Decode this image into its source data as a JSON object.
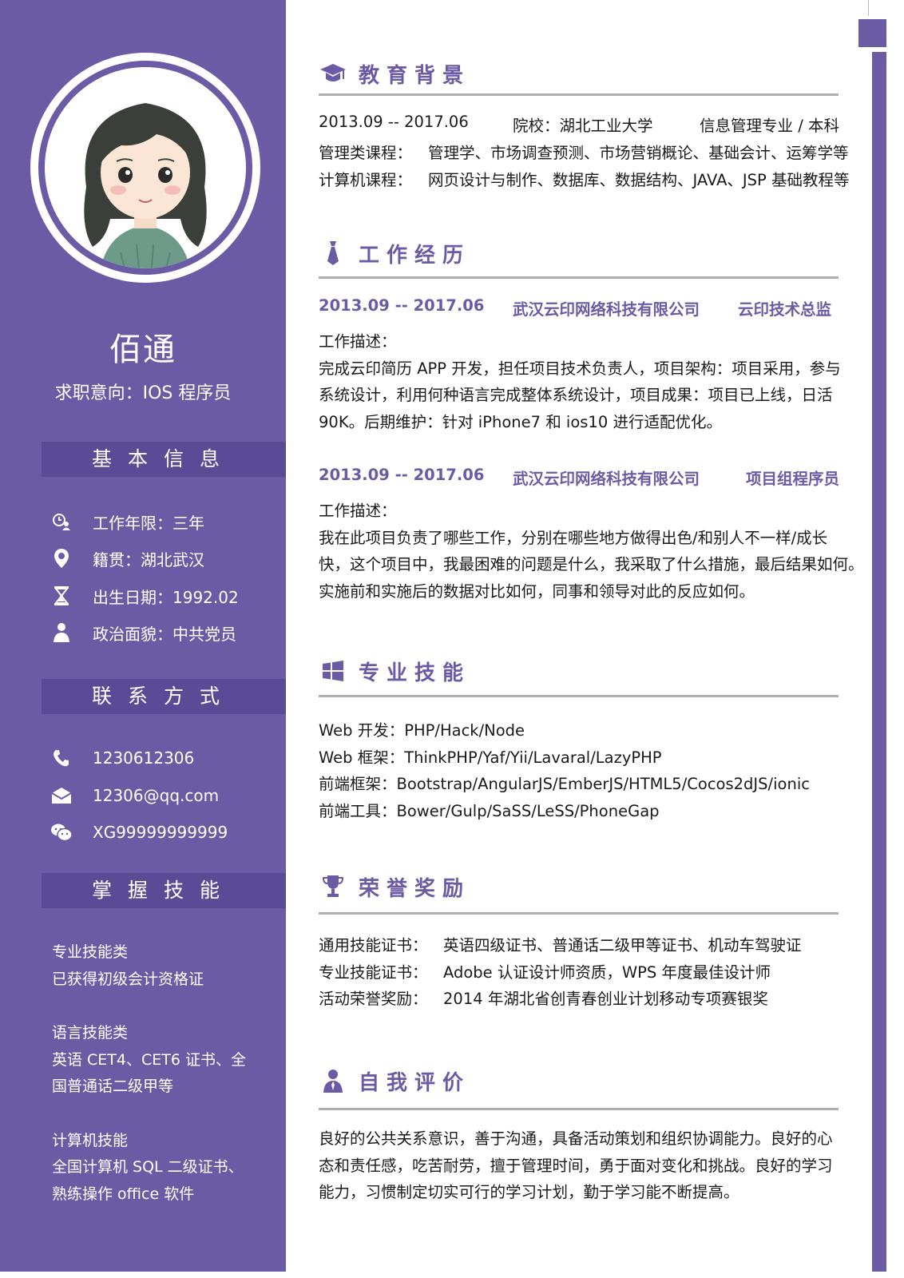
{
  "profile": {
    "name": "佰通",
    "intent": "求职意向：IOS 程序员"
  },
  "sidebar": {
    "basic_title": "基本信息",
    "basic_items": [
      {
        "icon": "clock-user-icon",
        "text": "工作年限：三年"
      },
      {
        "icon": "location-pin-icon",
        "text": "籍贯：湖北武汉"
      },
      {
        "icon": "hourglass-icon",
        "text": "出生日期：1992.02"
      },
      {
        "icon": "person-icon",
        "text": "政治面貌：中共党员"
      }
    ],
    "contact_title": "联系方式",
    "contact_items": [
      {
        "icon": "phone-icon",
        "text": "1230612306"
      },
      {
        "icon": "mail-icon",
        "text": "12306@qq.com"
      },
      {
        "icon": "wechat-icon",
        "text": "XG99999999999"
      }
    ],
    "skills_title": "掌握技能",
    "skill_groups": [
      {
        "lines": [
          "专业技能类",
          "已获得初级会计资格证"
        ]
      },
      {
        "lines": [
          "语言技能类",
          "英语 CET4、CET6 证书、全",
          "国普通话二级甲等"
        ]
      },
      {
        "lines": [
          "计算机技能",
          "全国计算机 SQL 二级证书、",
          "熟练操作 office 软件"
        ]
      }
    ]
  },
  "education": {
    "title": "教育背景",
    "period": "2013.09 -- 2017.06",
    "school": "院校：湖北工业大学",
    "major": "信息管理专业 / 本科",
    "mgmt_label": "管理类课程：",
    "mgmt_courses": "管理学、市场调查预测、市场营销概论、基础会计、运筹学等",
    "cs_label": "计算机课程：",
    "cs_courses": "网页设计与制作、数据库、数据结构、JAVA、JSP 基础教程等"
  },
  "work": {
    "title": "工作经历",
    "jobs": [
      {
        "period": "2013.09 -- 2017.06",
        "company": "武汉云印网络科技有限公司",
        "role": "云印技术总监",
        "desc_label": "工作描述：",
        "desc_lines": [
          "完成云印简历 APP 开发，担任项目技术负责人，项目架构：项目采用，参与",
          "系统设计，利用何种语言完成整体系统设计，项目成果：项目已上线，日活",
          "90K。后期维护：针对 iPhone7 和 ios10 进行适配优化。"
        ]
      },
      {
        "period": "2013.09 -- 2017.06",
        "company": "武汉云印网络科技有限公司",
        "role": "项目组程序员",
        "desc_label": "工作描述：",
        "desc_lines": [
          "我在此项目负责了哪些工作，分别在哪些地方做得出色/和别人不一样/成长",
          "快，这个项目中，我最困难的问题是什么，我采取了什么措施，最后结果如何。",
          "实施前和实施后的数据对比如何，同事和领导对此的反应如何。"
        ]
      }
    ]
  },
  "skills": {
    "title": "专业技能",
    "lines": [
      "Web 开发：PHP/Hack/Node",
      "Web 框架：ThinkPHP/Yaf/Yii/Lavaral/LazyPHP",
      "前端框架：Bootstrap/AngularJS/EmberJS/HTML5/Cocos2dJS/ionic",
      "前端工具：Bower/Gulp/SaSS/LeSS/PhoneGap"
    ]
  },
  "honors": {
    "title": "荣誉奖励",
    "items": [
      {
        "label": "通用技能证书：",
        "value": "英语四级证书、普通话二级甲等证书、机动车驾驶证"
      },
      {
        "label": "专业技能证书：",
        "value": "Adobe 认证设计师资质，WPS 年度最佳设计师"
      },
      {
        "label": "活动荣誉奖励：",
        "value": "2014 年湖北省创青春创业计划移动专项赛银奖"
      }
    ]
  },
  "self_eval": {
    "title": "自我评价",
    "lines": [
      "良好的公共关系意识，善于沟通，具备活动策划和组织协调能力。良好的心",
      "态和责任感，吃苦耐劳，擅于管理时间，勇于面对变化和挑战。良好的学习",
      "能力，习惯制定切实可行的学习计划，勤于学习能不断提高。"
    ]
  },
  "colors": {
    "accent": "#6b5ba5",
    "accent_dark": "#5a4b96",
    "divider": "#b0b0b0"
  }
}
